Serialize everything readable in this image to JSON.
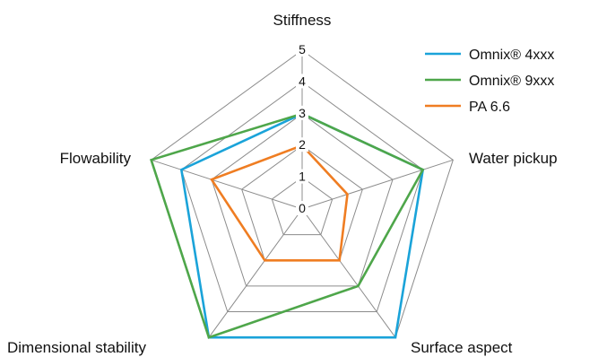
{
  "chart_data": {
    "type": "radar",
    "axes": [
      "Stiffness",
      "Water pickup",
      "Surface aspect",
      "Dimensional stability",
      "Flowability"
    ],
    "r_ticks": [
      "0",
      "1",
      "2",
      "3",
      "4",
      "5"
    ],
    "r_range": [
      0,
      5
    ],
    "grid": true,
    "legend_position": "top-right",
    "series": [
      {
        "name": "Omnix® 4xxx",
        "color": "#1aa3d9",
        "values": [
          3,
          4,
          5,
          5,
          4
        ]
      },
      {
        "name": "Omnix® 9xxx",
        "color": "#4ea64a",
        "values": [
          3,
          4,
          3,
          5,
          5
        ]
      },
      {
        "name": "PA 6.6",
        "color": "#ef7d22",
        "values": [
          2,
          1.5,
          2,
          2,
          3
        ]
      }
    ],
    "grid_color": "#8c8c8c"
  }
}
